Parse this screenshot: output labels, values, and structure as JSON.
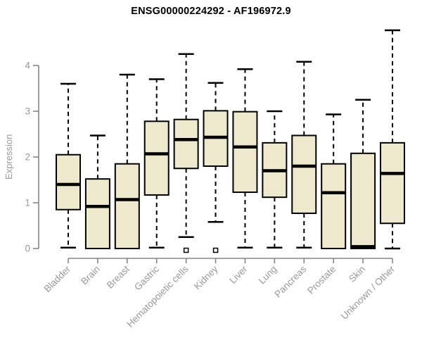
{
  "chart_data": {
    "type": "boxplot",
    "title": "ENSG00000224292 - AF196972.9",
    "xlabel": "",
    "ylabel": "Expression",
    "ylim": [
      0,
      4
    ],
    "yticks": [
      "0",
      "1",
      "2",
      "3",
      "4"
    ],
    "grid": false,
    "legend": null,
    "categories": [
      "Bladder",
      "Brain",
      "Breast",
      "Gastric",
      "Hematopoietic cells",
      "Kidney",
      "Liver",
      "Lung",
      "Pancreas",
      "Prostate",
      "Skin",
      "Unknown / Other"
    ],
    "series": [
      {
        "name": "Bladder",
        "whisker_low": 0.02,
        "q1": 0.85,
        "median": 1.4,
        "q3": 2.05,
        "whisker_high": 3.6,
        "outliers": []
      },
      {
        "name": "Brain",
        "whisker_low": 0.0,
        "q1": 0.0,
        "median": 0.92,
        "q3": 1.52,
        "whisker_high": 2.47,
        "outliers": []
      },
      {
        "name": "Breast",
        "whisker_low": 0.0,
        "q1": 0.0,
        "median": 1.07,
        "q3": 1.85,
        "whisker_high": 3.8,
        "outliers": []
      },
      {
        "name": "Gastric",
        "whisker_low": 0.02,
        "q1": 1.17,
        "median": 2.07,
        "q3": 2.78,
        "whisker_high": 3.7,
        "outliers": []
      },
      {
        "name": "Hematopoietic cells",
        "whisker_low": 0.25,
        "q1": 1.75,
        "median": 2.38,
        "q3": 2.82,
        "whisker_high": 4.25,
        "outliers": [
          0.0
        ]
      },
      {
        "name": "Kidney",
        "whisker_low": 0.58,
        "q1": 1.8,
        "median": 2.43,
        "q3": 3.01,
        "whisker_high": 3.62,
        "outliers": [
          0.0
        ]
      },
      {
        "name": "Liver",
        "whisker_low": 0.02,
        "q1": 1.23,
        "median": 2.22,
        "q3": 2.99,
        "whisker_high": 3.92,
        "outliers": []
      },
      {
        "name": "Lung",
        "whisker_low": 0.02,
        "q1": 1.12,
        "median": 1.7,
        "q3": 2.31,
        "whisker_high": 3.0,
        "outliers": []
      },
      {
        "name": "Pancreas",
        "whisker_low": 0.02,
        "q1": 0.77,
        "median": 1.8,
        "q3": 2.47,
        "whisker_high": 4.08,
        "outliers": []
      },
      {
        "name": "Prostate",
        "whisker_low": 0.0,
        "q1": 0.0,
        "median": 1.22,
        "q3": 1.85,
        "whisker_high": 2.93,
        "outliers": []
      },
      {
        "name": "Skin",
        "whisker_low": 0.0,
        "q1": 0.0,
        "median": 0.04,
        "q3": 2.08,
        "whisker_high": 3.25,
        "outliers": []
      },
      {
        "name": "Unknown / Other",
        "whisker_low": 0.0,
        "q1": 0.55,
        "median": 1.64,
        "q3": 2.31,
        "whisker_high": 4.77,
        "outliers": []
      }
    ],
    "colors": {
      "box_fill": "#EEE8CD",
      "box_border": "#000000",
      "median": "#000000",
      "whisker": "#000000",
      "axis": "#858585",
      "axis_text": "#989898",
      "title_text": "#000000",
      "background": "#ffffff"
    }
  }
}
